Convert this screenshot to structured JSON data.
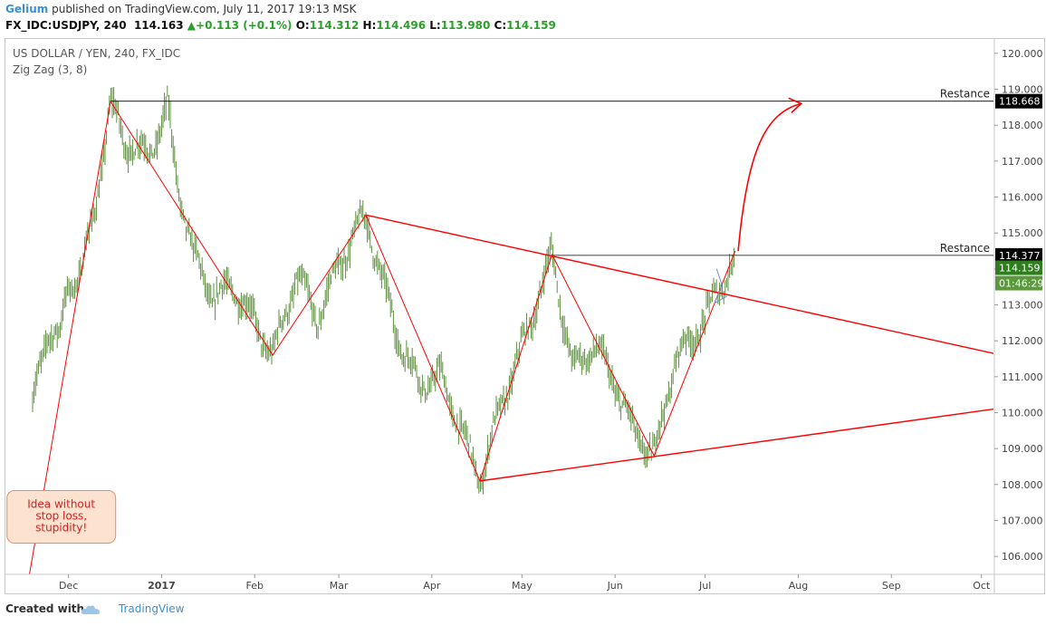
{
  "header": {
    "author": "Gelium",
    "published": "published on TradingView.com, July 11, 2017 19:13 MSK",
    "ticker": "FX_IDC:USDJPY, 240",
    "last": "114.163",
    "change": "+0.113 (+0.1%)",
    "o_label": "O:",
    "o": "114.312",
    "h_label": "H:",
    "h": "114.496",
    "l_label": "L:",
    "l": "113.980",
    "c_label": "C:",
    "c": "114.159"
  },
  "pane": {
    "symbol_title": "US DOLLAR / YEN, 240, FX_IDC",
    "indicator": "Zig Zag (3, 8)"
  },
  "footer": {
    "created_with": "Created with",
    "brand": "TradingView"
  },
  "colors": {
    "candle": "#5b8f3c",
    "zigzag": "#ff0000",
    "trend": "#ff0000",
    "resistance": "#000000",
    "price_tag": "#2f7d1f",
    "timer_tag": "#5b9a3c",
    "note_bg": "#fde2cf",
    "note_border": "#e88c6b",
    "note_text": "#d32020"
  },
  "chart_data": {
    "type": "line",
    "x_axis": {
      "ticks": [
        "Dec",
        "2017",
        "Feb",
        "Mar",
        "Apr",
        "May",
        "Jun",
        "Jul",
        "Aug",
        "Sep",
        "Oct"
      ],
      "range": [
        "2016-11-10",
        "2017-10-05"
      ]
    },
    "y_axis": {
      "range": [
        105.5,
        120.4
      ],
      "ticks": [
        "106.000",
        "107.000",
        "108.000",
        "109.000",
        "110.000",
        "111.000",
        "112.000",
        "113.000",
        "114.000",
        "115.000",
        "116.000",
        "117.000",
        "118.000",
        "119.000",
        "120.000"
      ]
    },
    "price_series": {
      "name": "",
      "anchors": [
        [
          "2016-11-10",
          105.5
        ],
        [
          "2016-11-13",
          106.8
        ],
        [
          "2016-11-16",
          108.5
        ],
        [
          "2016-11-20",
          110.6
        ],
        [
          "2016-11-24",
          112.4
        ],
        [
          "2016-11-28",
          112.0
        ],
        [
          "2016-12-01",
          113.6
        ],
        [
          "2016-12-05",
          113.9
        ],
        [
          "2016-12-09",
          115.2
        ],
        [
          "2016-12-15",
          118.6
        ],
        [
          "2016-12-20",
          117.5
        ],
        [
          "2016-12-28",
          117.2
        ],
        [
          "2017-01-03",
          118.5
        ],
        [
          "2017-01-06",
          116.5
        ],
        [
          "2017-01-12",
          114.3
        ],
        [
          "2017-01-18",
          113.2
        ],
        [
          "2017-01-25",
          113.5
        ],
        [
          "2017-02-01",
          112.5
        ],
        [
          "2017-02-07",
          111.6
        ],
        [
          "2017-02-15",
          113.8
        ],
        [
          "2017-02-22",
          112.6
        ],
        [
          "2017-03-02",
          114.3
        ],
        [
          "2017-03-10",
          115.5
        ],
        [
          "2017-03-16",
          113.5
        ],
        [
          "2017-03-22",
          111.8
        ],
        [
          "2017-03-28",
          110.8
        ],
        [
          "2017-04-04",
          111.0
        ],
        [
          "2017-04-11",
          109.5
        ],
        [
          "2017-04-17",
          108.1
        ],
        [
          "2017-04-24",
          110.2
        ],
        [
          "2017-05-01",
          111.8
        ],
        [
          "2017-05-11",
          114.4
        ],
        [
          "2017-05-18",
          111.2
        ],
        [
          "2017-05-25",
          111.9
        ],
        [
          "2017-06-01",
          110.8
        ],
        [
          "2017-06-07",
          109.5
        ],
        [
          "2017-06-14",
          108.8
        ],
        [
          "2017-06-21",
          111.5
        ],
        [
          "2017-06-28",
          112.2
        ],
        [
          "2017-07-05",
          113.3
        ],
        [
          "2017-07-11",
          114.4
        ]
      ]
    },
    "zigzag": {
      "name": "Zig Zag (3, 8)",
      "points": [
        [
          "2016-11-18",
          105.5
        ],
        [
          "2016-12-15",
          118.66
        ],
        [
          "2017-02-07",
          111.6
        ],
        [
          "2017-03-10",
          115.5
        ],
        [
          "2017-04-17",
          108.1
        ],
        [
          "2017-05-11",
          114.4
        ],
        [
          "2017-06-14",
          108.8
        ],
        [
          "2017-07-11",
          114.5
        ]
      ]
    },
    "trendlines": [
      {
        "from": [
          "2017-03-10",
          115.5
        ],
        "to": [
          "2017-10-05",
          111.65
        ]
      },
      {
        "from": [
          "2017-04-17",
          108.1
        ],
        "to": [
          "2017-10-05",
          110.1
        ]
      }
    ],
    "resistances": [
      {
        "label": "Restance",
        "value": 118.668,
        "from": "2016-12-15"
      },
      {
        "label": "Restance",
        "value": 114.377,
        "from": "2017-05-11"
      }
    ],
    "price_tags": {
      "res_top": "118.668",
      "res_bottom": "114.377",
      "current": "114.159",
      "timer": "01:46:29"
    },
    "current_value": 114.159,
    "arrow": {
      "from": [
        "2017-07-12",
        114.5
      ],
      "to": [
        "2017-08-02",
        118.6
      ]
    },
    "note": {
      "lines": [
        "Idea without",
        "stop loss,",
        "stupidity!"
      ],
      "anchor": [
        "2016-11-28",
        107.1
      ]
    }
  }
}
